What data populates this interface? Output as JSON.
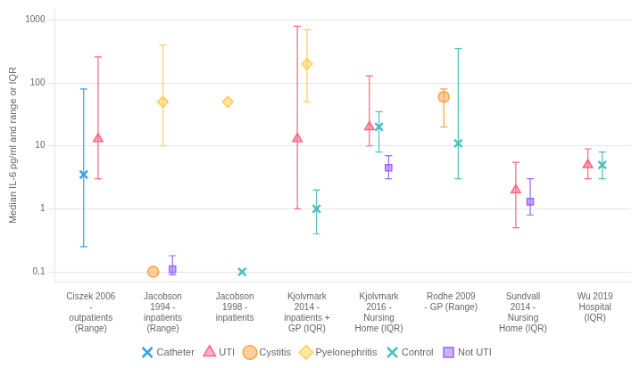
{
  "chart_data": {
    "type": "scatter",
    "ylabel": "Median IL-6 pg/ml and range or IQR",
    "categories": [
      "Ciszek 2006\n-\noutpatients\n(Range)",
      "Jacobson\n1994 -\ninpatients\n(Range)",
      "Jacobson\n1998 -\ninpatients",
      "Kjolvmark\n2014 -\ninpatients +\nGP (IQR)",
      "Kjolvmark\n2016 -\nNursing\nHome (IQR)",
      "Rodhe 2009\n- GP (Range)",
      "Sundvall\n2014 -\nNursing\nHome (IQR)",
      "Wu 2019\nHospital\n(IQR)"
    ],
    "series": [
      {
        "name": "Catheter",
        "marker": "x",
        "values": [
          3.5,
          null,
          null,
          null,
          null,
          null,
          null,
          null
        ],
        "low": [
          0.25,
          null,
          null,
          null,
          null,
          null,
          null,
          null
        ],
        "high": [
          80,
          null,
          null,
          null,
          null,
          null,
          null,
          null
        ]
      },
      {
        "name": "UTI",
        "marker": "triangle",
        "values": [
          13,
          null,
          null,
          13,
          20,
          null,
          2.0,
          5
        ],
        "low": [
          3.0,
          null,
          null,
          1.0,
          10,
          null,
          0.5,
          3
        ],
        "high": [
          260,
          null,
          null,
          800,
          130,
          null,
          5.5,
          9
        ]
      },
      {
        "name": "Cystitis",
        "marker": "circle",
        "values": [
          null,
          0.1,
          null,
          null,
          null,
          60,
          null,
          null
        ],
        "low": [
          null,
          null,
          null,
          null,
          null,
          20,
          null,
          null
        ],
        "high": [
          null,
          null,
          null,
          null,
          null,
          80,
          null,
          null
        ]
      },
      {
        "name": "Pyelonephritis",
        "marker": "diamond",
        "values": [
          null,
          50,
          50,
          200,
          null,
          null,
          null,
          null
        ],
        "low": [
          null,
          10,
          null,
          50,
          null,
          null,
          null,
          null
        ],
        "high": [
          null,
          400,
          null,
          700,
          null,
          null,
          null,
          null
        ]
      },
      {
        "name": "Control",
        "marker": "x",
        "values": [
          null,
          null,
          0.1,
          1.0,
          20,
          11,
          null,
          5
        ],
        "low": [
          null,
          null,
          null,
          0.4,
          8,
          3,
          null,
          3
        ],
        "high": [
          null,
          null,
          null,
          2.0,
          35,
          350,
          null,
          8
        ]
      },
      {
        "name": "Not UTI",
        "marker": "square",
        "values": [
          null,
          0.11,
          null,
          null,
          4.5,
          null,
          1.3,
          null
        ],
        "low": [
          null,
          0.09,
          null,
          null,
          3.0,
          null,
          0.8,
          null
        ],
        "high": [
          null,
          0.18,
          null,
          null,
          7,
          null,
          3.0,
          null
        ]
      }
    ],
    "log": "y",
    "ylim": [
      0.07,
      1500
    ],
    "yticks": [
      0.1,
      1,
      10,
      100,
      1000
    ],
    "grid": true,
    "legend": "bottom"
  }
}
